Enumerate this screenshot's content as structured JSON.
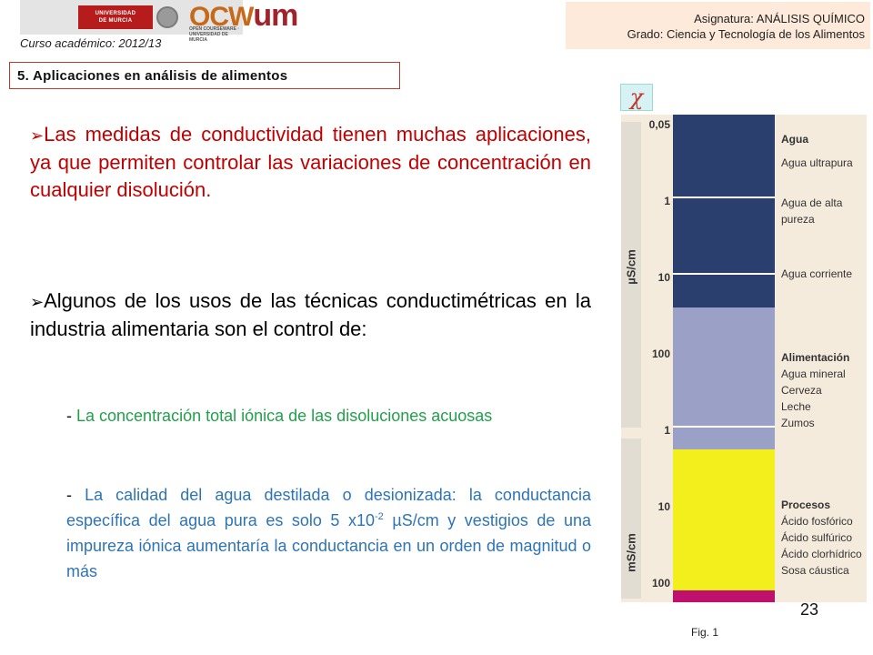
{
  "header": {
    "university_logo_text": [
      "UNIVERSIDAD",
      "DE MURCIA"
    ],
    "ocw_logo_text": "OCW",
    "um_logo_text": "um",
    "ocw_logo_sub": "OPEN COURSEWARE · UNIVERSIDAD DE MURCIA",
    "curso": "Curso académico: 2012/13",
    "asignatura": "Asignatura: ANÁLISIS QUÍMICO",
    "grado": "Grado: Ciencia y Tecnología de los Alimentos"
  },
  "section_title": "5.  Aplicaciones en análisis de alimentos",
  "body": {
    "p1": "Las medidas de conductividad tienen muchas aplicaciones, ya que permiten controlar las variaciones de concentración en cualquier disolución.",
    "p2": "Algunos de los usos de las técnicas conductimétricas en la industria alimentaria son el control de:",
    "item1_dash": "- ",
    "item1": "La concentración total iónica de las disoluciones acuosas",
    "item2_dash": "- ",
    "item2_a": "La calidad del agua destilada o desionizada: la conductancia específica del agua pura es solo 5 x10",
    "item2_sup": "-2",
    "item2_b": " µS/cm y vestigios de una impureza iónica aumentaría la conductancia en un orden de magnitud o más",
    "arrow": "➢"
  },
  "figure": {
    "chi_symbol": "χ",
    "unit_top": "µS/cm",
    "unit_bottom": "mS/cm",
    "ticks": [
      "0,05",
      "1",
      "10",
      "100",
      "1",
      "10",
      "100"
    ],
    "legend": {
      "agua_header": "Agua",
      "agua_items": [
        "Agua ultrapura",
        "Agua de alta",
        "pureza",
        "Agua corriente"
      ],
      "alim_header": "Alimentación",
      "alim_items": [
        "Agua mineral",
        "Cerveza",
        "Leche",
        "Zumos"
      ],
      "proc_header": "Procesos",
      "proc_items": [
        "Ácido fosfórico",
        "Ácido sulfúrico",
        "Ácido clorhídrico",
        "Sosa cáustica"
      ]
    },
    "colors": {
      "agua": "#2a3f6e",
      "alimentacion": "#9aa0c6",
      "procesos": "#f3ef1c",
      "sosa": "#c0106e"
    },
    "caption": "Fig. 1"
  },
  "page_number": "23"
}
